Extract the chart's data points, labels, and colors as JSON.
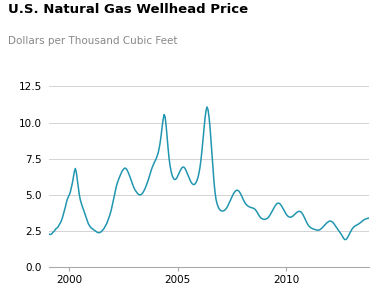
{
  "title": "U.S. Natural Gas Wellhead Price",
  "subtitle": "Dollars per Thousand Cubic Feet",
  "title_color": "#000000",
  "subtitle_color": "#888888",
  "line_color": "#2196b0",
  "background_color": "#ffffff",
  "grid_color": "#cccccc",
  "ylim": [
    0.0,
    13.5
  ],
  "yticks": [
    0.0,
    2.5,
    5.0,
    7.5,
    10.0,
    12.5
  ],
  "xlim_start": 1999.1,
  "xlim_end": 2013.8,
  "xticks": [
    2000,
    2005,
    2010
  ],
  "line_width": 1.1,
  "prices_by_year": {
    "values": [
      2.27,
      2.25,
      2.28,
      2.35,
      2.42,
      2.5,
      2.6,
      2.68,
      2.72,
      2.8,
      2.95,
      3.05,
      3.2,
      3.4,
      3.65,
      3.9,
      4.15,
      4.45,
      4.7,
      4.85,
      5.0,
      5.2,
      5.5,
      5.8,
      6.2,
      6.6,
      6.82,
      6.55,
      6.05,
      5.5,
      5.0,
      4.65,
      4.4,
      4.2,
      4.0,
      3.8,
      3.6,
      3.4,
      3.2,
      3.0,
      2.88,
      2.78,
      2.7,
      2.65,
      2.6,
      2.55,
      2.5,
      2.45,
      2.4,
      2.38,
      2.38,
      2.4,
      2.45,
      2.52,
      2.6,
      2.7,
      2.82,
      2.95,
      3.1,
      3.28,
      3.48,
      3.7,
      3.95,
      4.25,
      4.58,
      4.9,
      5.22,
      5.55,
      5.8,
      6.0,
      6.18,
      6.35,
      6.5,
      6.65,
      6.75,
      6.82,
      6.85,
      6.8,
      6.7,
      6.55,
      6.38,
      6.2,
      6.0,
      5.8,
      5.62,
      5.45,
      5.32,
      5.22,
      5.12,
      5.05,
      5.0,
      5.0,
      5.02,
      5.08,
      5.18,
      5.3,
      5.45,
      5.62,
      5.8,
      6.0,
      6.22,
      6.45,
      6.68,
      6.88,
      7.05,
      7.2,
      7.35,
      7.5,
      7.68,
      7.9,
      8.2,
      8.6,
      9.1,
      9.7,
      10.2,
      10.55,
      10.4,
      9.8,
      9.0,
      8.2,
      7.5,
      7.0,
      6.62,
      6.35,
      6.18,
      6.08,
      6.05,
      6.1,
      6.2,
      6.35,
      6.5,
      6.65,
      6.78,
      6.88,
      6.92,
      6.9,
      6.82,
      6.68,
      6.52,
      6.35,
      6.18,
      6.02,
      5.88,
      5.78,
      5.72,
      5.7,
      5.75,
      5.85,
      6.0,
      6.22,
      6.52,
      6.92,
      7.45,
      8.1,
      8.85,
      9.6,
      10.3,
      10.82,
      11.08,
      10.9,
      10.4,
      9.7,
      8.8,
      7.8,
      6.8,
      5.9,
      5.2,
      4.7,
      4.4,
      4.2,
      4.05,
      3.95,
      3.9,
      3.88,
      3.88,
      3.9,
      3.95,
      4.02,
      4.12,
      4.25,
      4.4,
      4.55,
      4.7,
      4.85,
      5.0,
      5.12,
      5.22,
      5.28,
      5.32,
      5.3,
      5.25,
      5.15,
      5.02,
      4.88,
      4.72,
      4.58,
      4.45,
      4.35,
      4.28,
      4.22,
      4.18,
      4.15,
      4.12,
      4.1,
      4.08,
      4.05,
      4.0,
      3.92,
      3.82,
      3.7,
      3.58,
      3.48,
      3.4,
      3.35,
      3.32,
      3.3,
      3.3,
      3.32,
      3.35,
      3.4,
      3.48,
      3.58,
      3.7,
      3.82,
      3.95,
      4.08,
      4.2,
      4.3,
      4.38,
      4.42,
      4.42,
      4.38,
      4.3,
      4.2,
      4.08,
      3.95,
      3.82,
      3.7,
      3.6,
      3.52,
      3.48,
      3.45,
      3.45,
      3.48,
      3.52,
      3.58,
      3.65,
      3.72,
      3.78,
      3.82,
      3.85,
      3.85,
      3.82,
      3.75,
      3.65,
      3.52,
      3.38,
      3.22,
      3.08,
      2.95,
      2.85,
      2.78,
      2.72,
      2.68,
      2.65,
      2.62,
      2.6,
      2.58,
      2.56,
      2.55,
      2.55,
      2.58,
      2.62,
      2.68,
      2.75,
      2.82,
      2.9,
      2.98,
      3.05,
      3.1,
      3.15,
      3.18,
      3.18,
      3.15,
      3.1,
      3.02,
      2.92,
      2.82,
      2.72,
      2.62,
      2.52,
      2.42,
      2.33,
      2.22,
      2.1,
      1.98,
      1.9,
      1.9,
      1.95,
      2.05,
      2.18,
      2.32,
      2.45,
      2.58,
      2.68,
      2.76,
      2.82,
      2.86,
      2.9,
      2.94,
      2.98,
      3.03,
      3.08,
      3.14,
      3.2,
      3.25,
      3.29,
      3.32,
      3.35,
      3.37,
      3.38
    ]
  }
}
